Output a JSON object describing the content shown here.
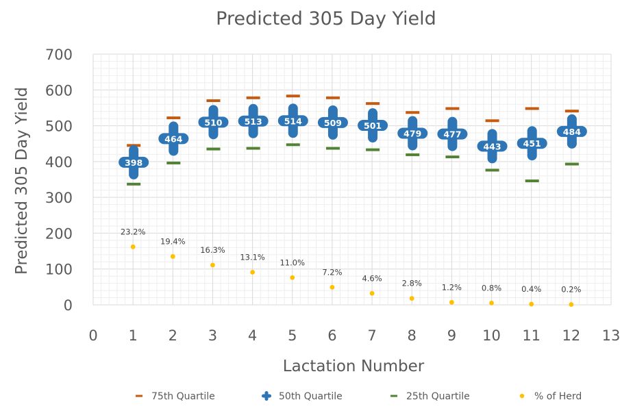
{
  "chart_data": {
    "type": "scatter",
    "title": "Predicted 305 Day Yield",
    "xlabel": "Lactation Number",
    "ylabel": "Predicted 305 Day Yield",
    "xlim": [
      0,
      13
    ],
    "ylim": [
      0,
      700
    ],
    "x_ticks": [
      "0",
      "1",
      "2",
      "3",
      "4",
      "5",
      "6",
      "7",
      "8",
      "9",
      "10",
      "11",
      "12",
      "13"
    ],
    "y_ticks": [
      "0",
      "100",
      "200",
      "300",
      "400",
      "500",
      "600",
      "700"
    ],
    "grid": true,
    "legend_position": "bottom",
    "x": [
      1,
      2,
      3,
      4,
      5,
      6,
      7,
      8,
      9,
      10,
      11,
      12
    ],
    "series": [
      {
        "name": "75th Quartile",
        "color": "#C55A11",
        "marker": "dash",
        "values": [
          445,
          522,
          570,
          578,
          583,
          578,
          562,
          537,
          548,
          514,
          548,
          541
        ]
      },
      {
        "name": "50th Quartile",
        "color": "#2E75B6",
        "marker": "plus",
        "values": [
          398,
          464,
          510,
          513,
          514,
          509,
          501,
          479,
          477,
          443,
          451,
          484
        ],
        "labels": [
          "398",
          "464",
          "510",
          "513",
          "514",
          "509",
          "501",
          "479",
          "477",
          "443",
          "451",
          "484"
        ]
      },
      {
        "name": "25th Quartile",
        "color": "#548235",
        "marker": "dash",
        "values": [
          337,
          396,
          435,
          437,
          447,
          437,
          433,
          419,
          413,
          376,
          346,
          393
        ]
      },
      {
        "name": "% of Herd",
        "color": "#FFC000",
        "marker": "dot",
        "values": [
          162,
          135,
          111,
          91,
          76,
          49,
          32,
          18,
          7,
          5,
          2,
          1
        ],
        "labels": [
          "23.2%",
          "19.4%",
          "16.3%",
          "13.1%",
          "11.0%",
          "7.2%",
          "4.6%",
          "2.8%",
          "1.2%",
          "0.8%",
          "0.4%",
          "0.2%"
        ]
      }
    ]
  }
}
